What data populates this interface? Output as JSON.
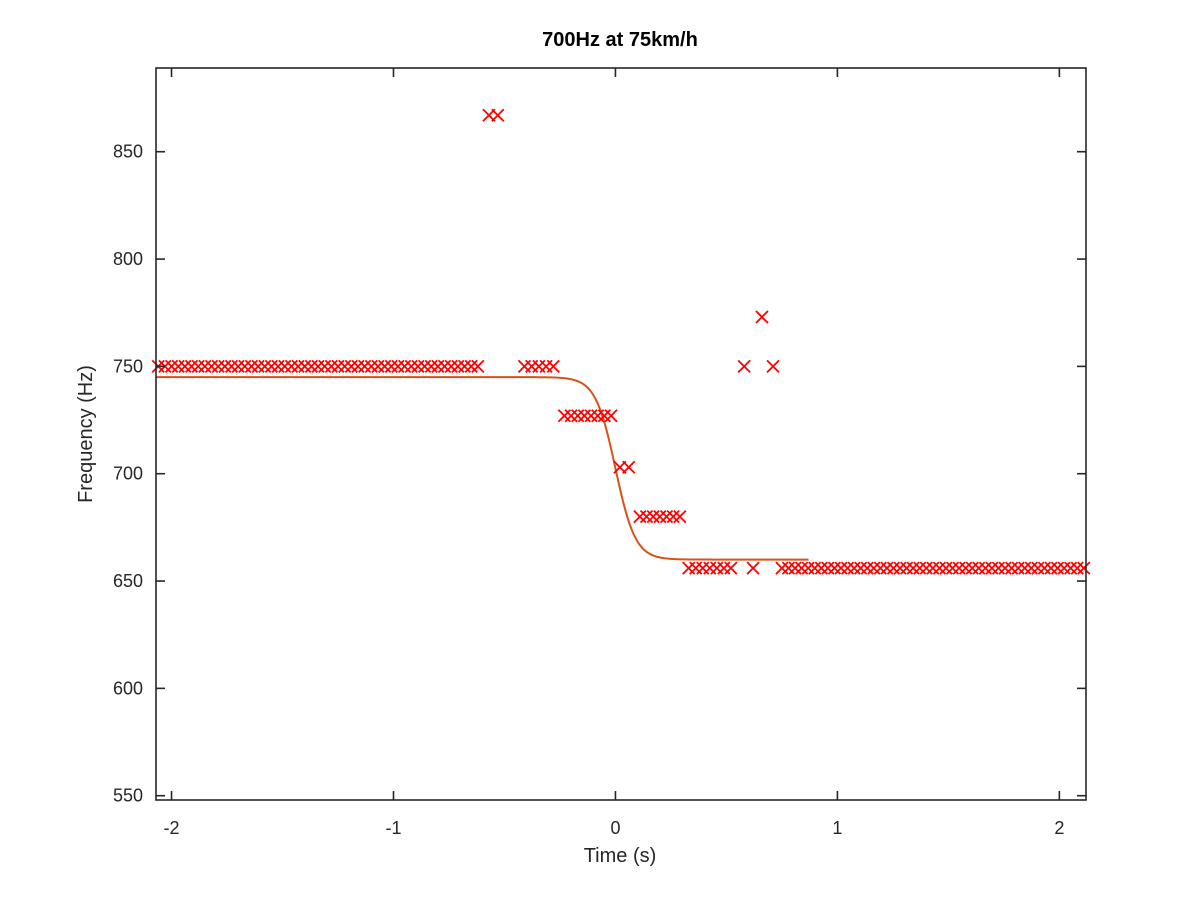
{
  "chart_data": {
    "type": "scatter",
    "title": "700Hz at 75km/h",
    "xlabel": "Time (s)",
    "ylabel": "Frequency (Hz)",
    "xlim": [
      -2.07,
      2.12
    ],
    "ylim": [
      548,
      889
    ],
    "xticks": [
      -2,
      -1,
      0,
      1,
      2
    ],
    "yticks": [
      550,
      600,
      650,
      700,
      750,
      800,
      850
    ],
    "grid": false,
    "colors": {
      "marker": "#ff0000",
      "fit": "#d95319",
      "axis": "#262626"
    },
    "series": [
      {
        "type": "scatter",
        "marker": "x",
        "segments": [
          {
            "y": 750,
            "x_from": -2.06,
            "x_to": -0.62,
            "count": 49
          },
          {
            "y": 750,
            "x_from": -0.41,
            "x_to": -0.28,
            "count": 5
          },
          {
            "y": 727,
            "x_from": -0.23,
            "x_to": -0.02,
            "count": 8
          },
          {
            "y": 703,
            "x_from": 0.02,
            "x_to": 0.06,
            "count": 2
          },
          {
            "y": 680,
            "x_from": 0.11,
            "x_to": 0.29,
            "count": 7
          },
          {
            "y": 656,
            "x_from": 0.33,
            "x_to": 0.52,
            "count": 7
          },
          {
            "y": 656,
            "x_from": 0.75,
            "x_to": 2.11,
            "count": 47
          }
        ],
        "points": [
          {
            "x": -0.57,
            "y": 867
          },
          {
            "x": -0.53,
            "y": 867
          },
          {
            "x": 0.58,
            "y": 750
          },
          {
            "x": 0.62,
            "y": 656
          },
          {
            "x": 0.66,
            "y": 773
          },
          {
            "x": 0.71,
            "y": 750
          }
        ]
      },
      {
        "type": "line",
        "curve": "logistic",
        "upper": 745,
        "lower": 660,
        "center": 0,
        "scale": 0.045,
        "x_from": -2.07,
        "x_to": 0.87
      }
    ]
  }
}
